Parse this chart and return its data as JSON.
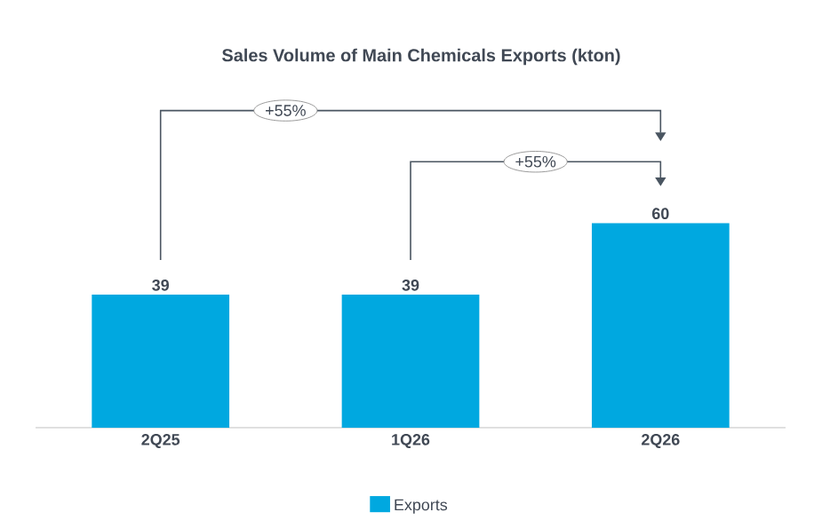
{
  "chart_data": {
    "type": "bar",
    "title": "Sales Volume of Main Chemicals Exports  (kton)",
    "categories": [
      "2Q25",
      "1Q26",
      "2Q26"
    ],
    "series": [
      {
        "name": "Exports",
        "color": "#00a8e0",
        "values": [
          39,
          39,
          60
        ]
      }
    ],
    "data_labels": true,
    "legend": "bottom",
    "annotations": [
      "+55%",
      "+55%"
    ]
  }
}
